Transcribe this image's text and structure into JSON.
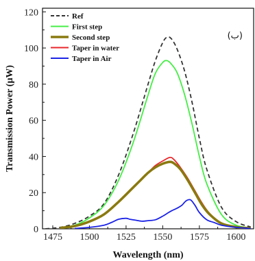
{
  "chart_data": {
    "type": "line",
    "xlabel": "Wavelength (nm)",
    "ylabel": "Transmission Power (µW)",
    "xlim": [
      1468,
      1612
    ],
    "ylim": [
      0,
      122
    ],
    "xticks": [
      1475,
      1500,
      1525,
      1550,
      1575,
      1600
    ],
    "yticks": [
      0,
      20,
      40,
      60,
      80,
      100,
      120
    ],
    "annotation": "(ب)",
    "legend_position": "top-left",
    "grid": false,
    "series": [
      {
        "name": "Ref",
        "color": "#333333",
        "dash": true,
        "x": [
          1470,
          1480,
          1490,
          1500,
          1510,
          1520,
          1530,
          1540,
          1545,
          1550,
          1553,
          1556,
          1560,
          1565,
          1570,
          1575,
          1580,
          1590,
          1600,
          1610
        ],
        "y": [
          0,
          0.8,
          3,
          7,
          14,
          30,
          53,
          80,
          93,
          103,
          106,
          105,
          99,
          87,
          70,
          50,
          33,
          12,
          4,
          1
        ]
      },
      {
        "name": "First step",
        "color": "#44ee44",
        "dash": false,
        "x": [
          1480,
          1490,
          1500,
          1510,
          1520,
          1530,
          1540,
          1545,
          1550,
          1553,
          1556,
          1560,
          1565,
          1570,
          1575,
          1580,
          1590,
          1600,
          1610
        ],
        "y": [
          0.5,
          2,
          6,
          13,
          27,
          48,
          74,
          86,
          92,
          93,
          91,
          86,
          74,
          58,
          40,
          25,
          8,
          2,
          0.5
        ]
      },
      {
        "name": "Second step",
        "color": "#8a7a10",
        "dash": false,
        "x": [
          1480,
          1490,
          1500,
          1510,
          1520,
          1530,
          1535,
          1540,
          1545,
          1550,
          1555,
          1558,
          1562,
          1567,
          1572,
          1577,
          1582,
          1590,
          1600,
          1610
        ],
        "y": [
          0.5,
          1.5,
          4,
          8,
          15,
          23,
          27,
          31,
          34,
          36,
          37,
          36,
          33,
          27,
          20,
          13,
          8,
          3,
          1,
          0.3
        ]
      },
      {
        "name": "Taper in water",
        "color": "#e8262a",
        "dash": false,
        "x": [
          1480,
          1490,
          1500,
          1510,
          1520,
          1530,
          1535,
          1540,
          1545,
          1550,
          1555,
          1558,
          1562,
          1567,
          1572,
          1577,
          1582,
          1590,
          1600,
          1610
        ],
        "y": [
          0.5,
          1.5,
          4,
          8,
          15,
          23,
          27,
          31,
          35,
          37.5,
          39.5,
          38,
          34,
          28,
          21,
          14,
          8.5,
          3,
          1,
          0.3
        ]
      },
      {
        "name": "Taper in Air",
        "color": "#1a22e6",
        "dash": false,
        "x": [
          1490,
          1500,
          1510,
          1515,
          1520,
          1525,
          1528,
          1532,
          1536,
          1540,
          1545,
          1550,
          1555,
          1560,
          1563,
          1566,
          1569,
          1572,
          1575,
          1580,
          1585,
          1590,
          1600,
          1610
        ],
        "y": [
          0.2,
          0.8,
          2,
          3.5,
          5.3,
          5.8,
          5.2,
          4.7,
          4.2,
          4.5,
          5,
          7,
          9.5,
          11.5,
          13,
          15.5,
          16,
          13,
          9,
          5,
          3.5,
          2,
          0.8,
          0.2
        ]
      }
    ]
  }
}
